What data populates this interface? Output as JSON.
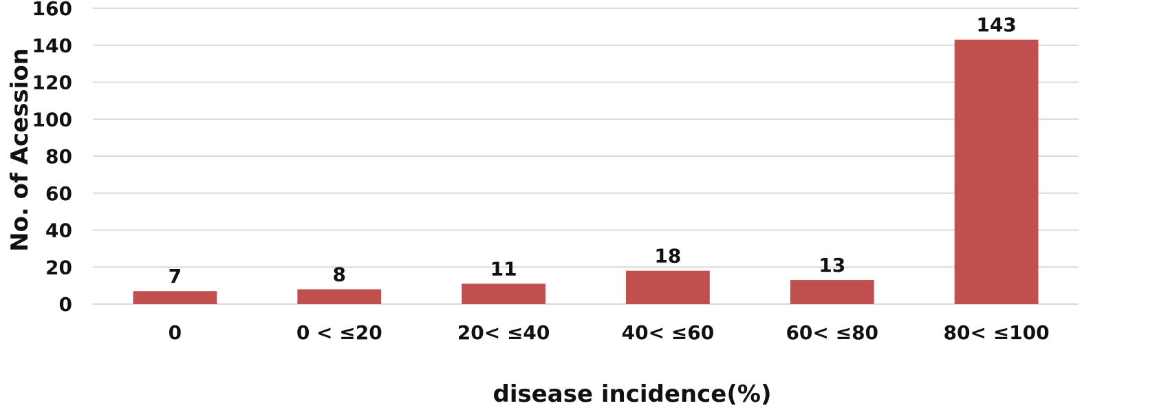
{
  "chart_data": {
    "type": "bar",
    "categories": [
      "0",
      "0 < ≤20",
      "20< ≤40",
      "40< ≤60",
      "60< ≤80",
      "80< ≤100"
    ],
    "values": [
      7,
      8,
      11,
      18,
      13,
      143
    ],
    "data_labels": [
      "7",
      "8",
      "11",
      "18",
      "13",
      "143"
    ],
    "title": "",
    "xlabel": "disease incidence(%)",
    "ylabel": "No. of Acession",
    "ylim": [
      0,
      160
    ],
    "yticks": [
      0,
      20,
      40,
      60,
      80,
      100,
      120,
      140,
      160
    ],
    "ytick_labels": [
      "0",
      "20",
      "40",
      "60",
      "80",
      "100",
      "120",
      "140",
      "160"
    ],
    "grid": true,
    "legend": "none",
    "bar_color": "#c0504d"
  }
}
